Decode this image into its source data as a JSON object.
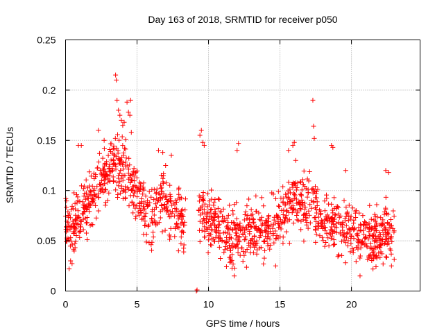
{
  "chart_data": {
    "type": "scatter",
    "title": "Day 163 of 2018, SRMTID for receiver p050",
    "xlabel": "GPS time / hours",
    "ylabel": "SRMTID / TECUs",
    "xlim": [
      0,
      24.8
    ],
    "ylim": [
      0,
      0.25
    ],
    "xticks": [
      0,
      5,
      10,
      15,
      20
    ],
    "yticks": [
      0,
      0.05,
      0.1,
      0.15,
      0.2,
      0.25
    ],
    "ytick_labels": [
      "0",
      "0.05",
      "0.1",
      "0.15",
      "0.2",
      "0.25"
    ],
    "grid": true,
    "marker": "+",
    "color": "#ff0000",
    "profile": [
      [
        0.0,
        0.067
      ],
      [
        0.5,
        0.065
      ],
      [
        1.0,
        0.075
      ],
      [
        1.5,
        0.085
      ],
      [
        2.0,
        0.1
      ],
      [
        2.5,
        0.112
      ],
      [
        3.0,
        0.118
      ],
      [
        3.5,
        0.128
      ],
      [
        4.0,
        0.12
      ],
      [
        4.5,
        0.108
      ],
      [
        5.0,
        0.098
      ],
      [
        5.5,
        0.083
      ],
      [
        6.0,
        0.075
      ],
      [
        6.5,
        0.088
      ],
      [
        7.0,
        0.09
      ],
      [
        7.5,
        0.077
      ],
      [
        8.0,
        0.068
      ],
      [
        8.4,
        0.065
      ],
      [
        9.3,
        0.075
      ],
      [
        10.0,
        0.07
      ],
      [
        10.5,
        0.068
      ],
      [
        11.0,
        0.058
      ],
      [
        11.5,
        0.05
      ],
      [
        12.0,
        0.058
      ],
      [
        12.5,
        0.053
      ],
      [
        13.0,
        0.057
      ],
      [
        13.5,
        0.062
      ],
      [
        14.0,
        0.06
      ],
      [
        14.5,
        0.065
      ],
      [
        15.0,
        0.07
      ],
      [
        15.5,
        0.083
      ],
      [
        16.0,
        0.092
      ],
      [
        16.5,
        0.09
      ],
      [
        17.0,
        0.082
      ],
      [
        17.5,
        0.078
      ],
      [
        18.0,
        0.073
      ],
      [
        18.5,
        0.07
      ],
      [
        19.0,
        0.067
      ],
      [
        19.5,
        0.065
      ],
      [
        20.0,
        0.062
      ],
      [
        20.5,
        0.058
      ],
      [
        21.0,
        0.055
      ],
      [
        21.5,
        0.052
      ],
      [
        22.0,
        0.055
      ],
      [
        22.5,
        0.06
      ],
      [
        23.0,
        0.062
      ]
    ],
    "gaps": [
      [
        8.4,
        9.3
      ]
    ],
    "series": [
      {
        "name": "SRMTID",
        "x": [
          0.02,
          0.25,
          0.35,
          0.9,
          1.1,
          2.3,
          2.7,
          3.5,
          3.55,
          3.6,
          3.7,
          3.8,
          3.9,
          4.0,
          4.1,
          4.3,
          4.4,
          4.5,
          4.55,
          4.6,
          6.5,
          6.8,
          7.0,
          7.4,
          7.9,
          9.15,
          9.2,
          9.4,
          9.5,
          9.6,
          9.7,
          11.8,
          12.0,
          12.1,
          14.7,
          15.6,
          15.9,
          16.0,
          16.1,
          17.3,
          17.35,
          17.4,
          18.6,
          18.7,
          19.6,
          20.6,
          22.4,
          22.6,
          22.8
        ],
        "y": [
          0.092,
          0.022,
          0.03,
          0.145,
          0.145,
          0.16,
          0.15,
          0.215,
          0.21,
          0.19,
          0.18,
          0.175,
          0.17,
          0.165,
          0.168,
          0.188,
          0.178,
          0.175,
          0.19,
          0.158,
          0.14,
          0.138,
          0.125,
          0.135,
          0.04,
          0.0,
          0.001,
          0.155,
          0.16,
          0.148,
          0.145,
          0.015,
          0.14,
          0.147,
          0.025,
          0.14,
          0.145,
          0.148,
          0.13,
          0.19,
          0.164,
          0.152,
          0.145,
          0.143,
          0.12,
          0.015,
          0.12,
          0.118,
          0.025
        ]
      }
    ]
  }
}
